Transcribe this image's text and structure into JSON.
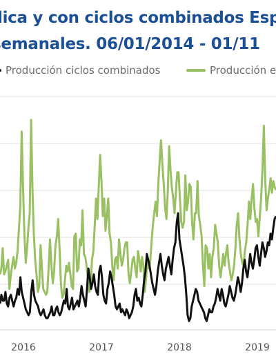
{
  "title_line1": "lica y con ciclos combinados Esp",
  "title_line2": "semanales. 06/01/2014 - 01/11",
  "chart_data": {
    "type": "line",
    "x_start": "2015.45",
    "x_end": "2019.25",
    "x_ticks": [
      "2016",
      "2017",
      "2018",
      "2019"
    ],
    "grid": "horizontal",
    "legend_position": "top",
    "series": [
      {
        "name": "Producción ciclos combinados",
        "color": "#111111",
        "values": [
          9,
          12,
          10,
          10,
          13,
          9,
          8,
          11,
          12,
          10,
          8,
          10,
          11,
          14,
          12,
          18,
          13,
          11,
          9,
          7,
          6,
          5,
          6,
          13,
          17,
          12,
          10,
          9,
          8,
          6,
          5,
          6,
          7,
          5,
          4,
          4,
          5,
          6,
          8,
          5,
          5,
          7,
          8,
          6,
          5,
          6,
          8,
          10,
          9,
          14,
          8,
          7,
          9,
          11,
          7,
          8,
          9,
          10,
          8,
          11,
          15,
          12,
          10,
          8,
          14,
          21,
          18,
          14,
          16,
          19,
          15,
          13,
          12,
          20,
          22,
          18,
          12,
          10,
          9,
          14,
          16,
          20,
          18,
          15,
          12,
          8,
          7,
          8,
          9,
          6,
          7,
          6,
          5,
          7,
          6,
          4,
          5,
          6,
          8,
          12,
          14,
          10,
          11,
          9,
          8,
          12,
          17,
          20,
          26,
          24,
          22,
          19,
          16,
          14,
          12,
          15,
          20,
          23,
          26,
          22,
          19,
          17,
          21,
          23,
          25,
          22,
          19,
          24,
          28,
          30,
          37,
          40,
          31,
          28,
          25,
          22,
          18,
          12,
          5,
          3,
          4,
          8,
          10,
          12,
          14,
          13,
          10,
          9,
          8,
          7,
          6,
          4,
          3,
          5,
          7,
          6,
          6,
          8,
          9,
          11,
          14,
          12,
          10,
          14,
          12,
          9,
          8,
          10,
          12,
          15,
          13,
          11,
          10,
          12,
          15,
          18,
          16,
          13,
          16,
          21,
          24,
          20,
          18,
          22,
          26,
          23,
          21,
          24,
          28,
          29,
          25,
          22,
          26,
          30,
          28,
          25,
          27,
          30,
          29,
          33,
          31,
          35,
          38,
          39
        ]
      },
      {
        "name": "Producción e",
        "color": "#9ac064",
        "values": [
          19,
          21,
          28,
          19,
          20,
          22,
          24,
          14,
          19,
          22,
          25,
          21,
          23,
          27,
          35,
          42,
          68,
          50,
          33,
          23,
          28,
          35,
          40,
          72,
          48,
          33,
          24,
          19,
          13,
          15,
          29,
          21,
          14,
          13,
          12,
          13,
          22,
          31,
          22,
          16,
          20,
          29,
          32,
          38,
          28,
          16,
          11,
          12,
          17,
          22,
          20,
          23,
          19,
          15,
          14,
          32,
          33,
          20,
          21,
          31,
          29,
          41,
          26,
          25,
          22,
          17,
          13,
          15,
          24,
          27,
          36,
          45,
          38,
          49,
          60,
          51,
          39,
          45,
          34,
          39,
          45,
          33,
          30,
          22,
          17,
          24,
          25,
          21,
          31,
          26,
          22,
          24,
          28,
          30,
          30,
          19,
          16,
          20,
          24,
          25,
          21,
          18,
          27,
          24,
          20,
          25,
          22,
          13,
          18,
          25,
          21,
          23,
          30,
          36,
          40,
          44,
          39,
          50,
          58,
          65,
          57,
          50,
          42,
          38,
          47,
          63,
          55,
          49,
          45,
          40,
          47,
          54,
          54,
          45,
          37,
          35,
          37,
          53,
          41,
          44,
          50,
          49,
          37,
          31,
          40,
          40,
          51,
          39,
          36,
          32,
          22,
          15,
          29,
          28,
          21,
          26,
          18,
          25,
          28,
          36,
          33,
          30,
          22,
          18,
          22,
          26,
          22,
          26,
          29,
          23,
          20,
          17,
          19,
          22,
          28,
          36,
          40,
          31,
          26,
          23,
          22,
          27,
          30,
          36,
          44,
          38,
          45,
          50,
          42,
          37,
          38,
          32,
          39,
          45,
          55,
          70,
          52,
          41,
          45,
          48,
          52,
          47,
          51,
          49,
          48
        ]
      }
    ]
  }
}
